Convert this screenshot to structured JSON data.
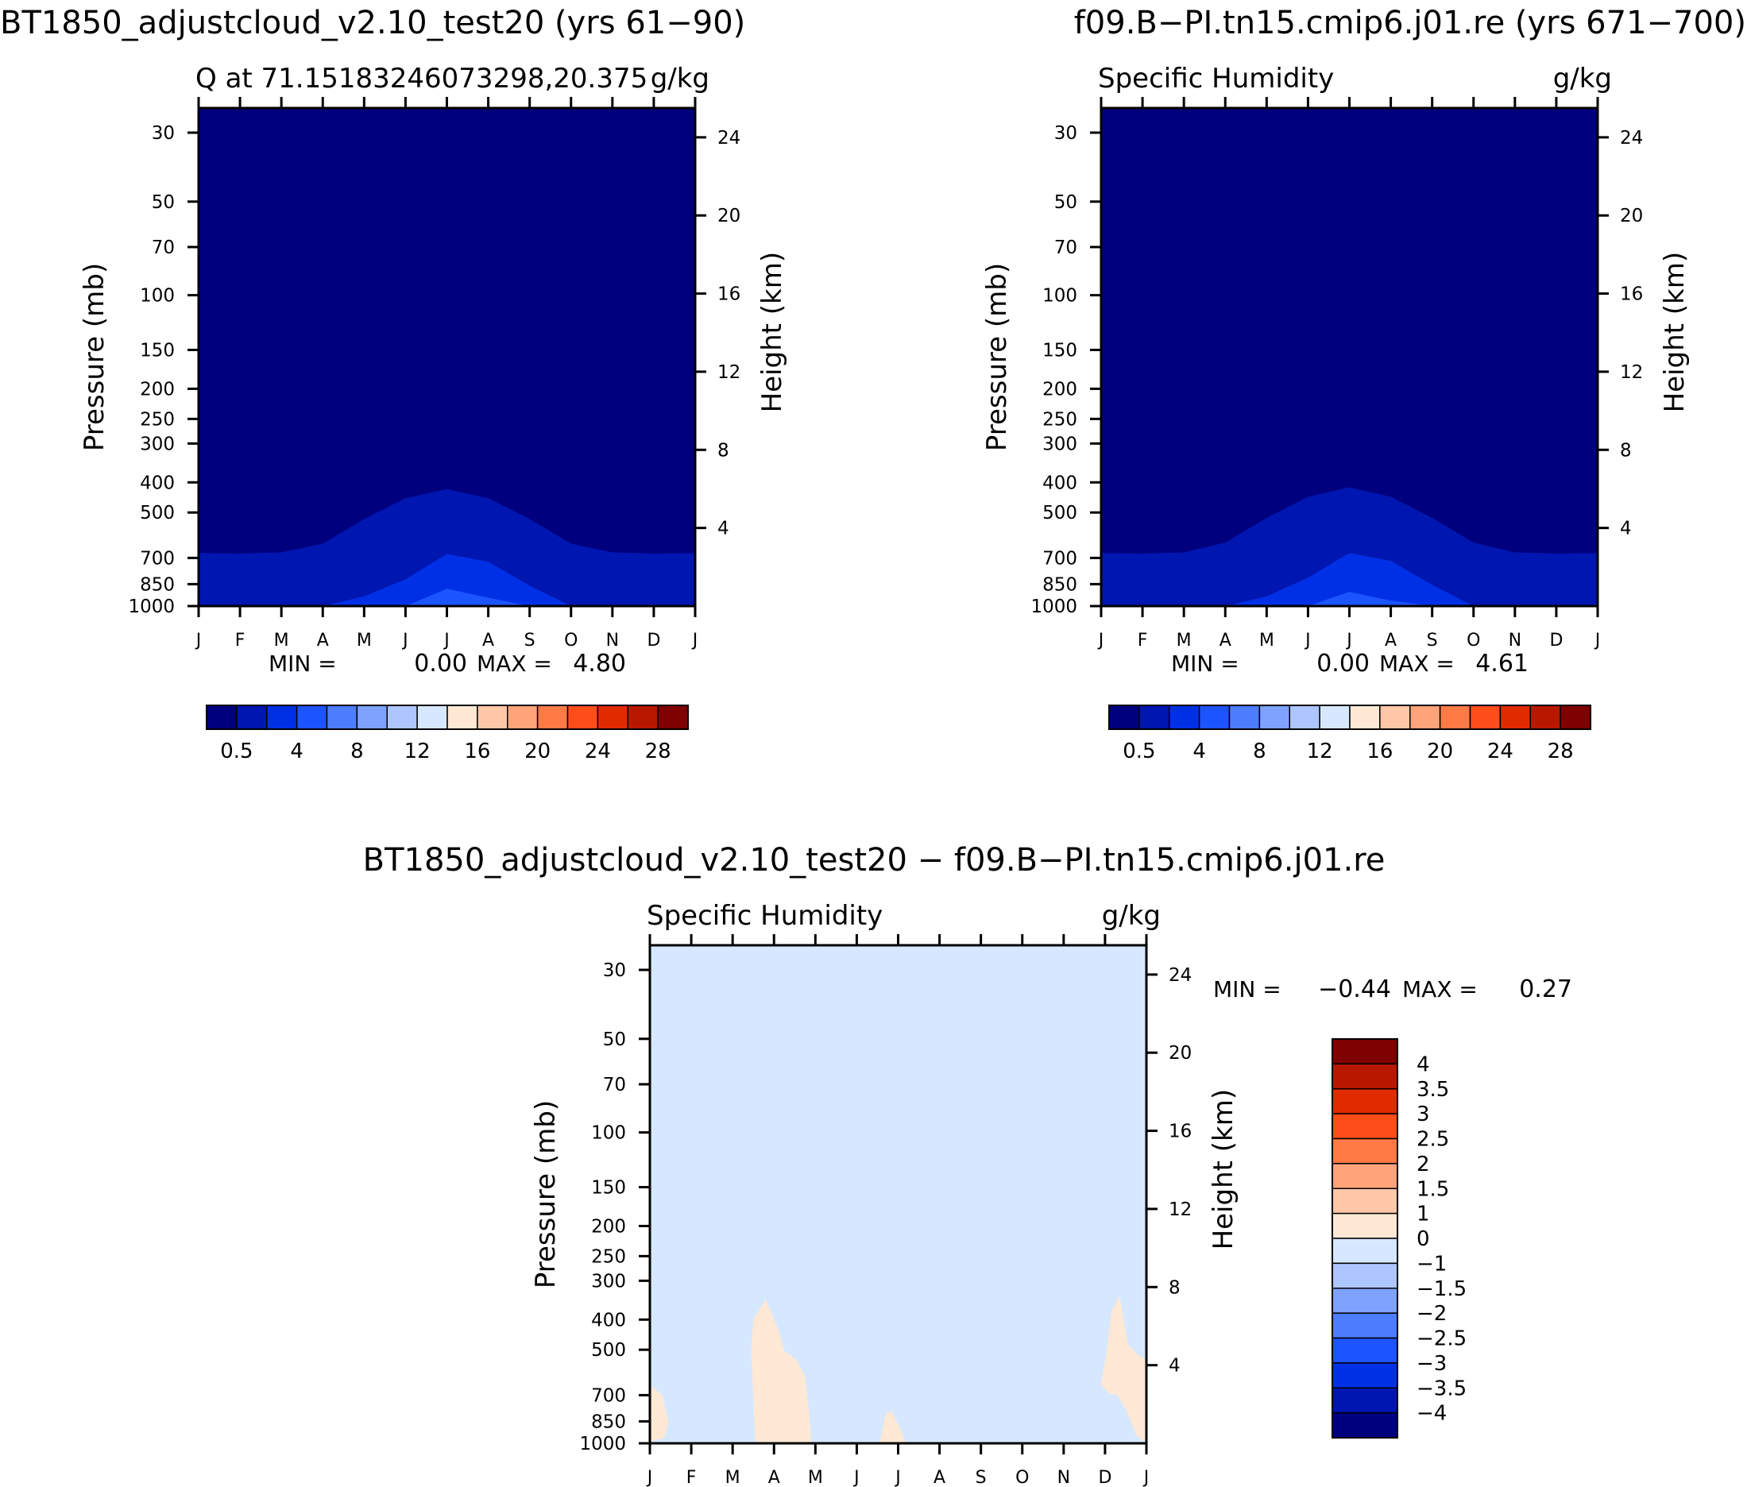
{
  "page": {
    "title_left": "BT1850_adjustcloud_v2.10_test20 (yrs 61−90)",
    "title_right": "f09.B−PI.tn15.cmip6.j01.re (yrs 671−700)",
    "title_diff": "BT1850_adjustcloud_v2.10_test20 − f09.B−PI.tn15.cmip6.j01.re"
  },
  "chart_data": [
    {
      "type": "contour",
      "title": "Q at 71.15183246073298,20.375",
      "units": "g/kg",
      "xlabel": "",
      "ylabel": "Pressure (mb)",
      "y2label": "Height (km)",
      "x_ticks": [
        "J",
        "F",
        "M",
        "A",
        "M",
        "J",
        "J",
        "A",
        "S",
        "O",
        "N",
        "D",
        "J"
      ],
      "y_ticks": [
        30,
        50,
        70,
        100,
        150,
        200,
        250,
        300,
        400,
        500,
        700,
        850,
        1000
      ],
      "y2_ticks": [
        24,
        20,
        16,
        12,
        8,
        4
      ],
      "ylim": [
        1000,
        25
      ],
      "min_label": "MIN =",
      "min_value": "0.00",
      "max_label": "MAX =",
      "max_value": "4.80",
      "contour_fill_tops_hpa": {
        "0_to_0.5": [
          25,
          25,
          25,
          25,
          25,
          25,
          25,
          25,
          25,
          25,
          25,
          25,
          25
        ],
        "0.5_to_2": [
          675,
          678,
          672,
          630,
          525,
          450,
          420,
          450,
          525,
          630,
          672,
          678,
          675
        ],
        "2_to_4": [
          1000,
          1000,
          1000,
          1000,
          930,
          820,
          680,
          720,
          860,
          1000,
          1000,
          1000,
          1000
        ],
        "4_to_6": [
          1000,
          1000,
          1000,
          1000,
          1000,
          1000,
          880,
          940,
          1000,
          1000,
          1000,
          1000,
          1000
        ]
      },
      "colorbar": {
        "orientation": "horizontal",
        "labels": [
          "0.5",
          "4",
          "8",
          "12",
          "16",
          "20",
          "24",
          "28"
        ],
        "colors": [
          "#00007f",
          "#0016b0",
          "#0030e6",
          "#1c54ff",
          "#4d7dff",
          "#7da2ff",
          "#adc6ff",
          "#d6e8ff",
          "#ffe8d4",
          "#ffc7a8",
          "#ffa37a",
          "#ff7a45",
          "#ff4d1a",
          "#e02a00",
          "#b81800",
          "#7f0000"
        ]
      }
    },
    {
      "type": "contour",
      "title": "Specific Humidity",
      "units": "g/kg",
      "xlabel": "",
      "ylabel": "Pressure (mb)",
      "y2label": "Height (km)",
      "x_ticks": [
        "J",
        "F",
        "M",
        "A",
        "M",
        "J",
        "J",
        "A",
        "S",
        "O",
        "N",
        "D",
        "J"
      ],
      "y_ticks": [
        30,
        50,
        70,
        100,
        150,
        200,
        250,
        300,
        400,
        500,
        700,
        850,
        1000
      ],
      "y2_ticks": [
        24,
        20,
        16,
        12,
        8,
        4
      ],
      "ylim": [
        1000,
        25
      ],
      "min_label": "MIN =",
      "min_value": "0.00",
      "max_label": "MAX =",
      "max_value": "4.61",
      "contour_fill_tops_hpa": {
        "0_to_0.5": [
          25,
          25,
          25,
          25,
          25,
          25,
          25,
          25,
          25,
          25,
          25,
          25,
          25
        ],
        "0.5_to_2": [
          675,
          678,
          672,
          625,
          520,
          445,
          415,
          445,
          520,
          625,
          672,
          678,
          675
        ],
        "2_to_4": [
          1000,
          1000,
          1000,
          1000,
          930,
          810,
          675,
          715,
          855,
          1000,
          1000,
          1000,
          1000
        ],
        "4_to_6": [
          1000,
          1000,
          1000,
          1000,
          1000,
          1000,
          900,
          960,
          1000,
          1000,
          1000,
          1000,
          1000
        ]
      },
      "colorbar": {
        "orientation": "horizontal",
        "labels": [
          "0.5",
          "4",
          "8",
          "12",
          "16",
          "20",
          "24",
          "28"
        ],
        "colors": [
          "#00007f",
          "#0016b0",
          "#0030e6",
          "#1c54ff",
          "#4d7dff",
          "#7da2ff",
          "#adc6ff",
          "#d6e8ff",
          "#ffe8d4",
          "#ffc7a8",
          "#ffa37a",
          "#ff7a45",
          "#ff4d1a",
          "#e02a00",
          "#b81800",
          "#7f0000"
        ]
      }
    },
    {
      "type": "contour",
      "title": "Specific Humidity",
      "units": "g/kg",
      "xlabel": "",
      "ylabel": "Pressure (mb)",
      "y2label": "Height (km)",
      "x_ticks": [
        "J",
        "F",
        "M",
        "A",
        "M",
        "J",
        "J",
        "A",
        "S",
        "O",
        "N",
        "D",
        "J"
      ],
      "y_ticks": [
        30,
        50,
        70,
        100,
        150,
        200,
        250,
        300,
        400,
        500,
        700,
        850,
        1000
      ],
      "y2_ticks": [
        24,
        20,
        16,
        12,
        8,
        4
      ],
      "ylim": [
        1000,
        25
      ],
      "min_label": "MIN =",
      "min_value": "−0.44",
      "max_label": "MAX =",
      "max_value": "0.27",
      "background_level": "-1 to 0",
      "positive_regions_0_to_1": [
        {
          "month_pressure": [
            [
              0,
              650
            ],
            [
              0.3,
              700
            ],
            [
              0.45,
              850
            ],
            [
              0.35,
              960
            ],
            [
              0,
              990
            ]
          ]
        },
        {
          "month_pressure": [
            [
              2.55,
              1000
            ],
            [
              2.45,
              500
            ],
            [
              2.5,
              400
            ],
            [
              2.8,
              345
            ],
            [
              3.1,
              430
            ],
            [
              3.25,
              505
            ],
            [
              3.55,
              540
            ],
            [
              3.75,
              610
            ],
            [
              3.85,
              800
            ],
            [
              3.9,
              1000
            ]
          ]
        },
        {
          "month_pressure": [
            [
              5.55,
              1000
            ],
            [
              5.7,
              800
            ],
            [
              5.85,
              790
            ],
            [
              6.05,
              900
            ],
            [
              6.2,
              1000
            ]
          ]
        },
        {
          "month_pressure": [
            [
              10.9,
              650
            ],
            [
              11.05,
              500
            ],
            [
              11.15,
              380
            ],
            [
              11.35,
              335
            ],
            [
              11.45,
              400
            ],
            [
              11.55,
              480
            ],
            [
              11.8,
              520
            ],
            [
              12,
              540
            ],
            [
              12,
              1000
            ],
            [
              11.75,
              940
            ],
            [
              11.55,
              800
            ],
            [
              11.3,
              700
            ],
            [
              11.1,
              690
            ]
          ]
        }
      ],
      "colorbar": {
        "orientation": "vertical",
        "labels": [
          "4",
          "3.5",
          "3",
          "2.5",
          "2",
          "1.5",
          "1",
          "0",
          "−1",
          "−1.5",
          "−2",
          "−2.5",
          "−3",
          "−3.5",
          "−4"
        ],
        "colors": [
          "#7f0000",
          "#b81800",
          "#e02a00",
          "#ff4d1a",
          "#ff7a45",
          "#ffa37a",
          "#ffc7a8",
          "#ffe8d4",
          "#d6e8ff",
          "#adc6ff",
          "#7da2ff",
          "#4d7dff",
          "#1c54ff",
          "#0030e6",
          "#0016b0",
          "#00007f"
        ]
      }
    }
  ]
}
